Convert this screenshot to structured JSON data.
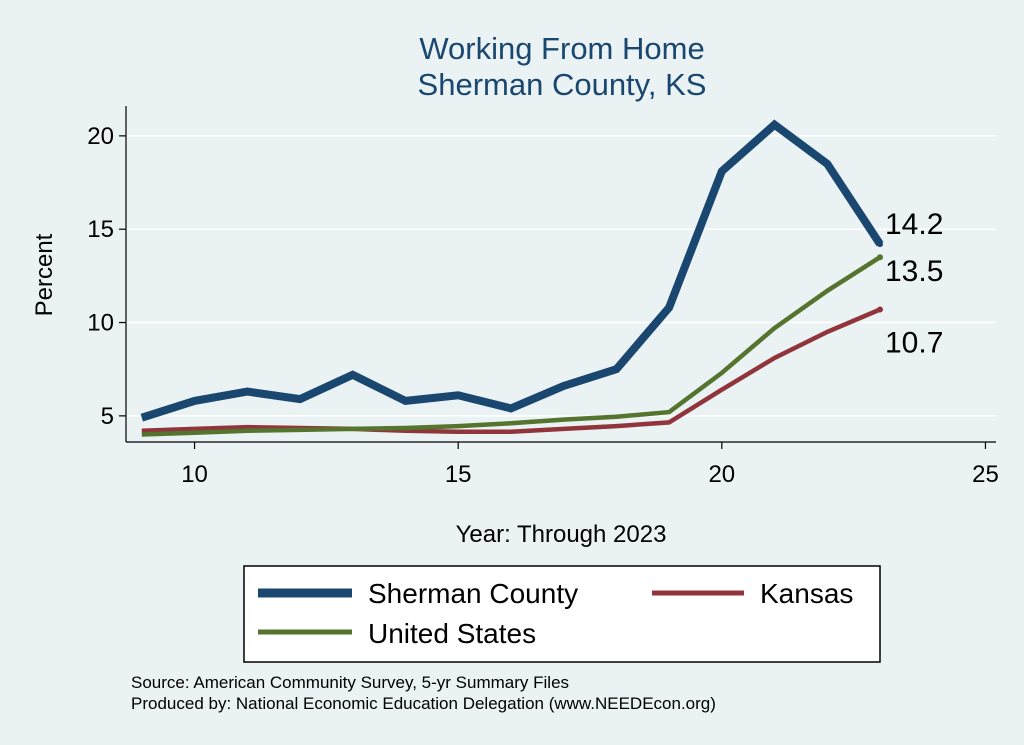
{
  "chart_data": {
    "type": "line",
    "title": [
      "Working From Home",
      "Sherman County, KS"
    ],
    "xlabel": "Year: Through 2023",
    "ylabel": "Percent",
    "xlim": [
      8.7,
      25.2
    ],
    "ylim": [
      3.6,
      21.6
    ],
    "x_ticks": [
      10,
      15,
      20,
      25
    ],
    "y_ticks": [
      5,
      10,
      15,
      20
    ],
    "grid": true,
    "legend_position": "bottom",
    "x": [
      9,
      10,
      11,
      12,
      13,
      14,
      15,
      16,
      17,
      18,
      19,
      20,
      21,
      22,
      23
    ],
    "series": [
      {
        "name": "Sherman County",
        "color": "#1a476f",
        "width": "thick",
        "values": [
          4.9,
          5.8,
          6.3,
          5.9,
          7.2,
          5.8,
          6.1,
          5.4,
          6.6,
          7.5,
          10.8,
          18.1,
          20.6,
          18.5,
          14.2
        ],
        "end_label": "14.2"
      },
      {
        "name": "Kansas",
        "color": "#90353b",
        "width": "medium",
        "values": [
          4.2,
          4.3,
          4.4,
          4.35,
          4.3,
          4.2,
          4.15,
          4.15,
          4.3,
          4.45,
          4.65,
          6.4,
          8.1,
          9.5,
          10.7
        ],
        "end_label": "10.7"
      },
      {
        "name": "United States",
        "color": "#55752f",
        "width": "medium",
        "values": [
          4.0,
          4.1,
          4.2,
          4.25,
          4.3,
          4.35,
          4.45,
          4.6,
          4.8,
          4.95,
          5.2,
          7.3,
          9.7,
          11.7,
          13.5
        ],
        "end_label": "13.5"
      }
    ],
    "notes": [
      "Source: American Community Survey, 5-yr Summary Files",
      "Produced by: National Economic Education Delegation (www.NEEDEcon.org)"
    ]
  }
}
